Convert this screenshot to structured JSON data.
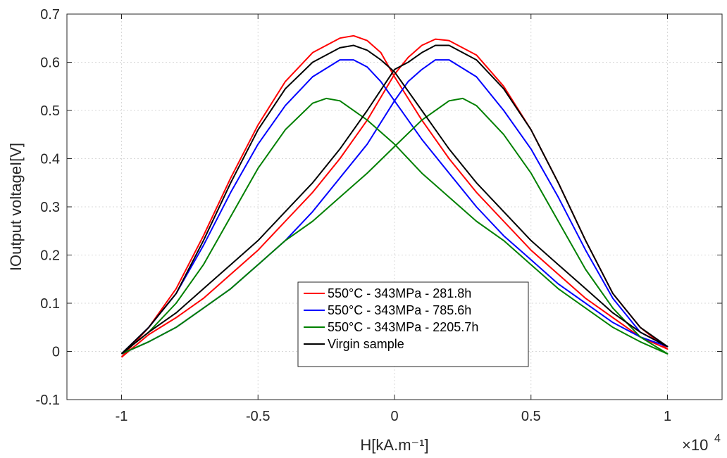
{
  "chart_data": {
    "type": "line",
    "xlabel": "H[kA.m⁻¹]",
    "ylabel": "IOutput voltageI[V]",
    "x_multiplier": "×10",
    "x_multiplier_exp": "4",
    "xlim": [
      -1.2,
      1.2
    ],
    "ylim": [
      -0.1,
      0.7
    ],
    "x_ticks": [
      -1,
      -0.5,
      0,
      0.5,
      1
    ],
    "x_tick_labels": [
      "-1",
      "-0.5",
      "0",
      "0.5",
      "1"
    ],
    "y_ticks": [
      -0.1,
      0,
      0.1,
      0.2,
      0.3,
      0.4,
      0.5,
      0.6,
      0.7
    ],
    "y_tick_labels": [
      "-0.1",
      "0",
      "0.1",
      "0.2",
      "0.3",
      "0.4",
      "0.5",
      "0.6",
      "0.7"
    ],
    "grid": true,
    "legend_position": "lower-center",
    "series": [
      {
        "name": "550°C - 343MPa - 281.8h",
        "color": "#ff0000",
        "x": [
          -1.0,
          -0.9,
          -0.8,
          -0.7,
          -0.6,
          -0.5,
          -0.4,
          -0.3,
          -0.2,
          -0.15,
          -0.1,
          -0.05,
          0.0,
          0.1,
          0.2,
          0.3,
          0.4,
          0.5,
          0.6,
          0.7,
          0.8,
          0.9,
          1.0,
          0.9,
          0.8,
          0.7,
          0.6,
          0.5,
          0.4,
          0.3,
          0.2,
          0.15,
          0.1,
          0.05,
          0.0,
          -0.1,
          -0.2,
          -0.3,
          -0.4,
          -0.5,
          -0.6,
          -0.7,
          -0.8,
          -0.9,
          -1.0
        ],
        "y": [
          -0.012,
          0.05,
          0.13,
          0.24,
          0.36,
          0.47,
          0.56,
          0.62,
          0.65,
          0.655,
          0.645,
          0.62,
          0.57,
          0.48,
          0.4,
          0.33,
          0.27,
          0.21,
          0.16,
          0.11,
          0.07,
          0.03,
          0.005,
          0.05,
          0.12,
          0.23,
          0.35,
          0.46,
          0.55,
          0.615,
          0.645,
          0.648,
          0.635,
          0.61,
          0.575,
          0.48,
          0.4,
          0.33,
          0.27,
          0.21,
          0.16,
          0.11,
          0.07,
          0.035,
          -0.012
        ]
      },
      {
        "name": "550°C - 343MPa - 785.6h",
        "color": "#0000ff",
        "x": [
          -1.0,
          -0.9,
          -0.8,
          -0.7,
          -0.6,
          -0.5,
          -0.4,
          -0.3,
          -0.2,
          -0.15,
          -0.1,
          -0.05,
          0.0,
          0.1,
          0.2,
          0.3,
          0.4,
          0.5,
          0.6,
          0.7,
          0.8,
          0.9,
          1.0,
          0.9,
          0.8,
          0.7,
          0.6,
          0.5,
          0.4,
          0.3,
          0.2,
          0.15,
          0.1,
          0.05,
          0.0,
          -0.1,
          -0.2,
          -0.3,
          -0.4,
          -0.5,
          -0.6,
          -0.7,
          -0.8,
          -0.9,
          -1.0
        ],
        "y": [
          -0.005,
          0.05,
          0.12,
          0.22,
          0.33,
          0.43,
          0.51,
          0.57,
          0.605,
          0.605,
          0.59,
          0.56,
          0.52,
          0.44,
          0.37,
          0.3,
          0.24,
          0.19,
          0.14,
          0.1,
          0.06,
          0.03,
          0.01,
          0.04,
          0.11,
          0.21,
          0.32,
          0.42,
          0.5,
          0.57,
          0.605,
          0.605,
          0.585,
          0.56,
          0.52,
          0.43,
          0.36,
          0.29,
          0.23,
          0.18,
          0.13,
          0.09,
          0.05,
          0.02,
          -0.005
        ]
      },
      {
        "name": "550°C - 343MPa - 2205.7h",
        "color": "#008000",
        "x": [
          -1.0,
          -0.9,
          -0.8,
          -0.7,
          -0.6,
          -0.5,
          -0.4,
          -0.3,
          -0.25,
          -0.2,
          -0.1,
          0.0,
          0.1,
          0.2,
          0.3,
          0.4,
          0.5,
          0.6,
          0.7,
          0.8,
          0.9,
          1.0,
          0.9,
          0.8,
          0.7,
          0.6,
          0.5,
          0.4,
          0.3,
          0.25,
          0.2,
          0.1,
          0.0,
          -0.1,
          -0.2,
          -0.3,
          -0.4,
          -0.5,
          -0.6,
          -0.7,
          -0.8,
          -0.9,
          -1.0
        ],
        "y": [
          -0.005,
          0.04,
          0.1,
          0.18,
          0.28,
          0.38,
          0.46,
          0.515,
          0.525,
          0.52,
          0.48,
          0.43,
          0.37,
          0.32,
          0.27,
          0.23,
          0.18,
          0.13,
          0.09,
          0.05,
          0.02,
          -0.005,
          0.03,
          0.09,
          0.17,
          0.27,
          0.37,
          0.45,
          0.51,
          0.525,
          0.52,
          0.48,
          0.425,
          0.37,
          0.32,
          0.27,
          0.23,
          0.18,
          0.13,
          0.09,
          0.05,
          0.02,
          -0.005
        ]
      },
      {
        "name": "Virgin sample",
        "color": "#000000",
        "x": [
          -1.0,
          -0.9,
          -0.8,
          -0.7,
          -0.6,
          -0.5,
          -0.4,
          -0.3,
          -0.2,
          -0.15,
          -0.1,
          -0.05,
          0.0,
          0.1,
          0.2,
          0.3,
          0.4,
          0.5,
          0.6,
          0.7,
          0.8,
          0.9,
          1.0,
          0.9,
          0.8,
          0.7,
          0.6,
          0.5,
          0.4,
          0.3,
          0.2,
          0.15,
          0.1,
          0.05,
          0.0,
          -0.1,
          -0.2,
          -0.3,
          -0.4,
          -0.5,
          -0.6,
          -0.7,
          -0.8,
          -0.9,
          -1.0
        ],
        "y": [
          -0.005,
          0.05,
          0.12,
          0.23,
          0.35,
          0.46,
          0.545,
          0.6,
          0.63,
          0.635,
          0.625,
          0.605,
          0.58,
          0.5,
          0.42,
          0.35,
          0.29,
          0.23,
          0.18,
          0.13,
          0.08,
          0.04,
          0.01,
          0.05,
          0.12,
          0.23,
          0.35,
          0.46,
          0.545,
          0.605,
          0.635,
          0.635,
          0.62,
          0.6,
          0.585,
          0.5,
          0.42,
          0.35,
          0.29,
          0.23,
          0.18,
          0.13,
          0.08,
          0.04,
          -0.005
        ]
      }
    ]
  }
}
